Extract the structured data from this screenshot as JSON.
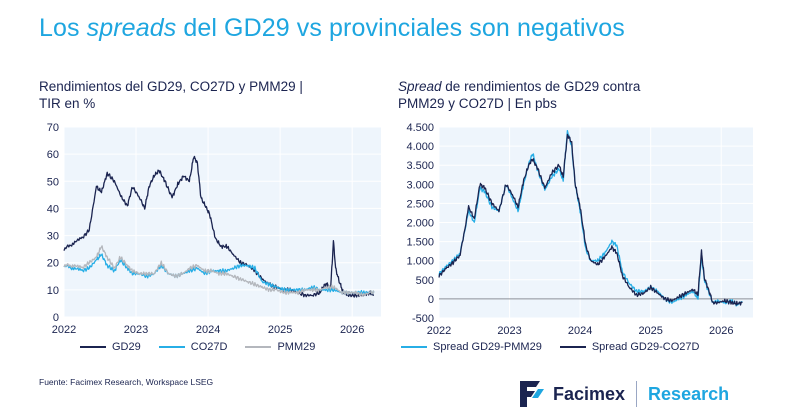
{
  "headline": {
    "prefix": "Los ",
    "emph": "spreads",
    "suffix": " del GD29 vs provinciales son negativos"
  },
  "left_subtitle": {
    "line1": "Rendimientos del GD29, CO27D y PMM29 |",
    "line2": "TIR en %"
  },
  "right_subtitle": {
    "emph": "Spread",
    "rest1": " de rendimientos de GD29 contra",
    "line2": "PMM29 y CO27D | En pbs"
  },
  "source": "Fuente: Facimex Research, Workspace LSEG",
  "brand": {
    "logo_icon": "facimex-logo-icon",
    "company": "Facimex",
    "section": "Research"
  },
  "colors": {
    "title": "#1ea6e0",
    "navy": "#1b2450",
    "light_blue": "#27aee6",
    "gray": "#b4b7bd",
    "chart_bg": "#eef5fc",
    "grid": "#ffffff"
  },
  "chart_data": [
    {
      "type": "line",
      "title": "Rendimientos del GD29, CO27D y PMM29 | TIR en %",
      "xlabel": "",
      "ylabel": "TIR en %",
      "xlim": [
        2022.0,
        2026.4
      ],
      "ylim": [
        0,
        70
      ],
      "x_ticks": [
        2022,
        2023,
        2024,
        2025,
        2026
      ],
      "y_ticks": [
        0,
        10,
        20,
        30,
        40,
        50,
        60,
        70
      ],
      "grid": true,
      "legend": "bottom",
      "series": [
        {
          "name": "GD29",
          "color": "#1b2450",
          "points": [
            [
              2022.0,
              25
            ],
            [
              2022.12,
              27
            ],
            [
              2022.25,
              29
            ],
            [
              2022.35,
              32
            ],
            [
              2022.45,
              48
            ],
            [
              2022.52,
              46
            ],
            [
              2022.6,
              53
            ],
            [
              2022.7,
              50
            ],
            [
              2022.8,
              44
            ],
            [
              2022.88,
              41
            ],
            [
              2022.95,
              48
            ],
            [
              2023.05,
              44
            ],
            [
              2023.12,
              40
            ],
            [
              2023.18,
              48
            ],
            [
              2023.25,
              52
            ],
            [
              2023.32,
              54
            ],
            [
              2023.4,
              50
            ],
            [
              2023.5,
              44
            ],
            [
              2023.58,
              49
            ],
            [
              2023.66,
              52
            ],
            [
              2023.74,
              50
            ],
            [
              2023.8,
              59
            ],
            [
              2023.85,
              57
            ],
            [
              2023.9,
              44
            ],
            [
              2023.96,
              41
            ],
            [
              2024.02,
              38
            ],
            [
              2024.1,
              29
            ],
            [
              2024.18,
              26
            ],
            [
              2024.26,
              26
            ],
            [
              2024.35,
              23
            ],
            [
              2024.45,
              20
            ],
            [
              2024.55,
              19
            ],
            [
              2024.65,
              17
            ],
            [
              2024.75,
              14
            ],
            [
              2024.85,
              12
            ],
            [
              2024.95,
              11
            ],
            [
              2025.05,
              10
            ],
            [
              2025.15,
              10
            ],
            [
              2025.25,
              9
            ],
            [
              2025.35,
              8
            ],
            [
              2025.45,
              8
            ],
            [
              2025.55,
              9
            ],
            [
              2025.62,
              12
            ],
            [
              2025.66,
              12
            ],
            [
              2025.7,
              10
            ],
            [
              2025.74,
              28
            ],
            [
              2025.77,
              18
            ],
            [
              2025.82,
              13
            ],
            [
              2025.88,
              9
            ],
            [
              2025.95,
              8
            ],
            [
              2026.05,
              8
            ],
            [
              2026.15,
              8
            ],
            [
              2026.25,
              9
            ],
            [
              2026.3,
              8
            ]
          ]
        },
        {
          "name": "CO27D",
          "color": "#27aee6",
          "points": [
            [
              2022.0,
              19
            ],
            [
              2022.12,
              18
            ],
            [
              2022.25,
              17
            ],
            [
              2022.35,
              18
            ],
            [
              2022.45,
              21
            ],
            [
              2022.52,
              23
            ],
            [
              2022.6,
              19
            ],
            [
              2022.7,
              17
            ],
            [
              2022.78,
              21
            ],
            [
              2022.88,
              18
            ],
            [
              2022.95,
              16
            ],
            [
              2023.05,
              16
            ],
            [
              2023.15,
              15
            ],
            [
              2023.25,
              16
            ],
            [
              2023.35,
              19
            ],
            [
              2023.45,
              16
            ],
            [
              2023.55,
              15
            ],
            [
              2023.65,
              16
            ],
            [
              2023.75,
              17
            ],
            [
              2023.85,
              18
            ],
            [
              2023.95,
              16
            ],
            [
              2024.05,
              17
            ],
            [
              2024.15,
              17
            ],
            [
              2024.25,
              17
            ],
            [
              2024.35,
              18
            ],
            [
              2024.45,
              19
            ],
            [
              2024.55,
              19
            ],
            [
              2024.65,
              18
            ],
            [
              2024.75,
              13
            ],
            [
              2024.85,
              12
            ],
            [
              2024.95,
              11
            ],
            [
              2025.05,
              10
            ],
            [
              2025.15,
              10
            ],
            [
              2025.25,
              10
            ],
            [
              2025.35,
              10
            ],
            [
              2025.45,
              11
            ],
            [
              2025.55,
              10
            ],
            [
              2025.65,
              10
            ],
            [
              2025.75,
              10
            ],
            [
              2025.85,
              9
            ],
            [
              2025.95,
              9
            ],
            [
              2026.05,
              9
            ],
            [
              2026.15,
              9
            ],
            [
              2026.25,
              9
            ],
            [
              2026.3,
              9
            ]
          ]
        },
        {
          "name": "PMM29",
          "color": "#b4b7bd",
          "points": [
            [
              2022.0,
              19
            ],
            [
              2022.12,
              19
            ],
            [
              2022.25,
              18
            ],
            [
              2022.35,
              20
            ],
            [
              2022.45,
              22
            ],
            [
              2022.52,
              26
            ],
            [
              2022.6,
              22
            ],
            [
              2022.7,
              18
            ],
            [
              2022.78,
              22
            ],
            [
              2022.88,
              19
            ],
            [
              2022.95,
              17
            ],
            [
              2023.05,
              16
            ],
            [
              2023.15,
              16
            ],
            [
              2023.25,
              16
            ],
            [
              2023.35,
              20
            ],
            [
              2023.45,
              16
            ],
            [
              2023.55,
              15
            ],
            [
              2023.65,
              16
            ],
            [
              2023.75,
              18
            ],
            [
              2023.85,
              19
            ],
            [
              2023.95,
              17
            ],
            [
              2024.05,
              17
            ],
            [
              2024.15,
              16
            ],
            [
              2024.25,
              16
            ],
            [
              2024.35,
              15
            ],
            [
              2024.45,
              14
            ],
            [
              2024.55,
              13
            ],
            [
              2024.65,
              12
            ],
            [
              2024.75,
              11
            ],
            [
              2024.85,
              10
            ],
            [
              2024.95,
              10
            ],
            [
              2025.05,
              9
            ],
            [
              2025.15,
              9
            ],
            [
              2025.25,
              9
            ],
            [
              2025.35,
              10
            ],
            [
              2025.45,
              10
            ],
            [
              2025.55,
              10
            ],
            [
              2025.65,
              11
            ],
            [
              2025.75,
              11
            ],
            [
              2025.85,
              9
            ],
            [
              2025.95,
              9
            ],
            [
              2026.05,
              9
            ],
            [
              2026.15,
              8
            ],
            [
              2026.25,
              9
            ],
            [
              2026.3,
              9
            ]
          ]
        }
      ]
    },
    {
      "type": "line",
      "title": "Spread de rendimientos de GD29 contra PMM29 y CO27D | En pbs",
      "xlabel": "",
      "ylabel": "pbs",
      "xlim": [
        2022.0,
        2026.45
      ],
      "ylim": [
        -500,
        4500
      ],
      "x_ticks": [
        2022,
        2023,
        2024,
        2025,
        2026
      ],
      "y_ticks": [
        -500,
        0,
        500,
        1000,
        1500,
        2000,
        2500,
        3000,
        3500,
        4000,
        4500
      ],
      "y_tick_labels": [
        "-500",
        "0",
        "500",
        "1.000",
        "1.500",
        "2.000",
        "2.500",
        "3.000",
        "3.500",
        "4.000",
        "4.500"
      ],
      "grid": true,
      "zero_line": true,
      "legend": "bottom",
      "series": [
        {
          "name": "Spread GD29-PMM29",
          "color": "#27aee6",
          "points": [
            [
              2022.0,
              650
            ],
            [
              2022.1,
              850
            ],
            [
              2022.2,
              1000
            ],
            [
              2022.3,
              1200
            ],
            [
              2022.42,
              2300
            ],
            [
              2022.5,
              2000
            ],
            [
              2022.58,
              2900
            ],
            [
              2022.65,
              2800
            ],
            [
              2022.75,
              2400
            ],
            [
              2022.85,
              2300
            ],
            [
              2022.95,
              3000
            ],
            [
              2023.05,
              2600
            ],
            [
              2023.12,
              2300
            ],
            [
              2023.2,
              3000
            ],
            [
              2023.28,
              3600
            ],
            [
              2023.33,
              3800
            ],
            [
              2023.4,
              3350
            ],
            [
              2023.5,
              2850
            ],
            [
              2023.6,
              3200
            ],
            [
              2023.7,
              3400
            ],
            [
              2023.76,
              3100
            ],
            [
              2023.82,
              4400
            ],
            [
              2023.88,
              4000
            ],
            [
              2023.93,
              3000
            ],
            [
              2024.0,
              2300
            ],
            [
              2024.08,
              1300
            ],
            [
              2024.15,
              1000
            ],
            [
              2024.25,
              1000
            ],
            [
              2024.35,
              1200
            ],
            [
              2024.45,
              1500
            ],
            [
              2024.52,
              1400
            ],
            [
              2024.6,
              700
            ],
            [
              2024.7,
              400
            ],
            [
              2024.8,
              200
            ],
            [
              2024.9,
              200
            ],
            [
              2025.0,
              300
            ],
            [
              2025.1,
              200
            ],
            [
              2025.2,
              0
            ],
            [
              2025.3,
              -100
            ],
            [
              2025.4,
              0
            ],
            [
              2025.5,
              100
            ],
            [
              2025.6,
              200
            ],
            [
              2025.67,
              0
            ],
            [
              2025.72,
              1150
            ],
            [
              2025.76,
              500
            ],
            [
              2025.82,
              200
            ],
            [
              2025.88,
              -100
            ],
            [
              2025.95,
              -50
            ],
            [
              2026.05,
              -100
            ],
            [
              2026.15,
              -50
            ],
            [
              2026.22,
              -150
            ],
            [
              2026.3,
              -80
            ]
          ]
        },
        {
          "name": "Spread GD29-CO27D",
          "color": "#1b2450",
          "points": [
            [
              2022.0,
              600
            ],
            [
              2022.1,
              800
            ],
            [
              2022.2,
              950
            ],
            [
              2022.3,
              1150
            ],
            [
              2022.42,
              2400
            ],
            [
              2022.5,
              2100
            ],
            [
              2022.58,
              3000
            ],
            [
              2022.65,
              2900
            ],
            [
              2022.75,
              2500
            ],
            [
              2022.85,
              2300
            ],
            [
              2022.95,
              3000
            ],
            [
              2023.05,
              2700
            ],
            [
              2023.12,
              2400
            ],
            [
              2023.2,
              3100
            ],
            [
              2023.28,
              3550
            ],
            [
              2023.33,
              3650
            ],
            [
              2023.4,
              3400
            ],
            [
              2023.5,
              2900
            ],
            [
              2023.6,
              3300
            ],
            [
              2023.7,
              3500
            ],
            [
              2023.76,
              3200
            ],
            [
              2023.82,
              4300
            ],
            [
              2023.88,
              4100
            ],
            [
              2023.93,
              3000
            ],
            [
              2024.0,
              2400
            ],
            [
              2024.08,
              1400
            ],
            [
              2024.15,
              1000
            ],
            [
              2024.25,
              900
            ],
            [
              2024.35,
              1100
            ],
            [
              2024.45,
              1350
            ],
            [
              2024.52,
              1200
            ],
            [
              2024.6,
              600
            ],
            [
              2024.7,
              300
            ],
            [
              2024.8,
              100
            ],
            [
              2024.9,
              150
            ],
            [
              2025.0,
              300
            ],
            [
              2025.1,
              150
            ],
            [
              2025.2,
              0
            ],
            [
              2025.3,
              -50
            ],
            [
              2025.4,
              50
            ],
            [
              2025.5,
              150
            ],
            [
              2025.6,
              250
            ],
            [
              2025.67,
              100
            ],
            [
              2025.72,
              1250
            ],
            [
              2025.76,
              550
            ],
            [
              2025.82,
              250
            ],
            [
              2025.88,
              -100
            ],
            [
              2025.95,
              -100
            ],
            [
              2026.05,
              -50
            ],
            [
              2026.15,
              -100
            ],
            [
              2026.22,
              -120
            ],
            [
              2026.3,
              -100
            ]
          ]
        }
      ]
    }
  ]
}
